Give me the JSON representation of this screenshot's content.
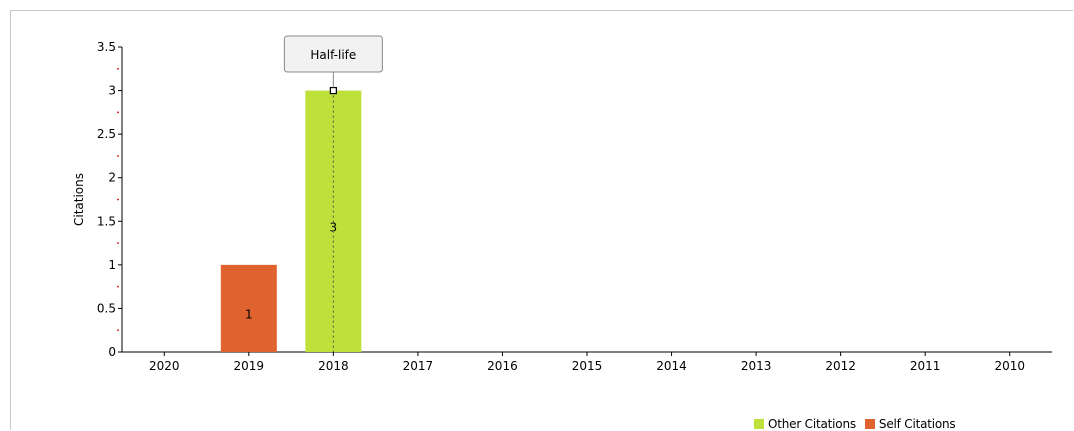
{
  "chart_data": {
    "type": "bar",
    "stacked": true,
    "categories": [
      "2020",
      "2019",
      "2018",
      "2017",
      "2016",
      "2015",
      "2014",
      "2013",
      "2012",
      "2011",
      "2010"
    ],
    "series": [
      {
        "name": "Other Citations",
        "color": "#bde03a",
        "values": [
          0,
          0,
          3,
          0,
          0,
          0,
          0,
          0,
          0,
          0,
          0
        ]
      },
      {
        "name": "Self Citations",
        "color": "#e0622e",
        "values": [
          0,
          1,
          0,
          0,
          0,
          0,
          0,
          0,
          0,
          0,
          0
        ]
      }
    ],
    "ylabel": "Citations",
    "ylim": [
      0,
      3.5
    ],
    "yticks": [
      "0",
      "0.5",
      "1",
      "1.5",
      "2",
      "2.5",
      "3",
      "3.5"
    ],
    "grid": false,
    "legend_position": "bottom-right",
    "annotation": {
      "label": "Half-life",
      "category": "2018",
      "value": 3
    }
  }
}
